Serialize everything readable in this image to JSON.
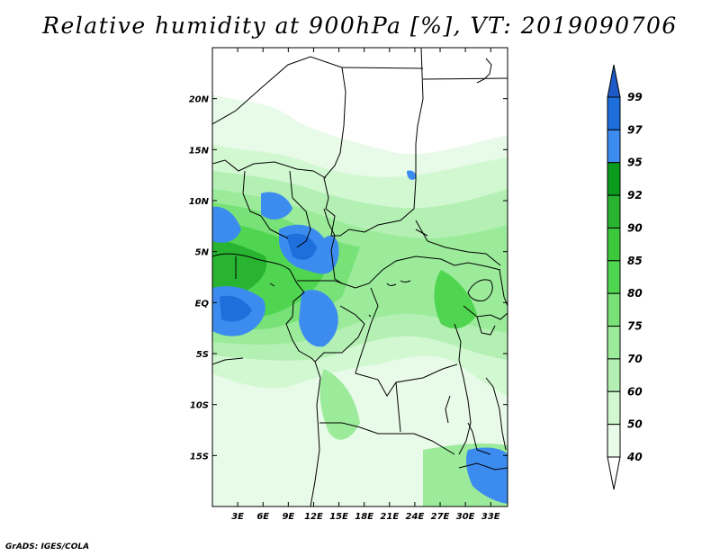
{
  "title": "Relative humidity at 900hPa [%], VT: 2019090706",
  "credit": "GrADS: IGES/COLA",
  "map": {
    "lat_labels": [
      "20N",
      "15N",
      "10N",
      "5N",
      "EQ",
      "5S",
      "10S",
      "15S"
    ],
    "lat_values": [
      20,
      15,
      10,
      5,
      0,
      -5,
      -10,
      -15
    ],
    "lon_labels": [
      "3E",
      "6E",
      "9E",
      "12E",
      "15E",
      "18E",
      "21E",
      "24E",
      "27E",
      "30E",
      "33E"
    ],
    "lon_values": [
      3,
      6,
      9,
      12,
      15,
      18,
      21,
      24,
      27,
      30,
      33
    ],
    "lon_range": [
      0,
      35
    ],
    "lat_range": [
      -20,
      25
    ]
  },
  "colorbar": {
    "labels": [
      "99",
      "97",
      "95",
      "92",
      "90",
      "85",
      "80",
      "75",
      "70",
      "60",
      "50",
      "40"
    ],
    "levels": [
      99,
      97,
      95,
      92,
      90,
      85,
      80,
      75,
      70,
      60,
      50,
      40
    ],
    "colors": [
      "#1e6edc",
      "#3c8cf0",
      "#0a9a1e",
      "#28b431",
      "#3cc83c",
      "#50d550",
      "#78e178",
      "#9beb9b",
      "#b4f0b4",
      "#d2f8d2",
      "#e8fae8",
      "#ffffff"
    ],
    "top_arrow_color": "#1e5ac8"
  }
}
